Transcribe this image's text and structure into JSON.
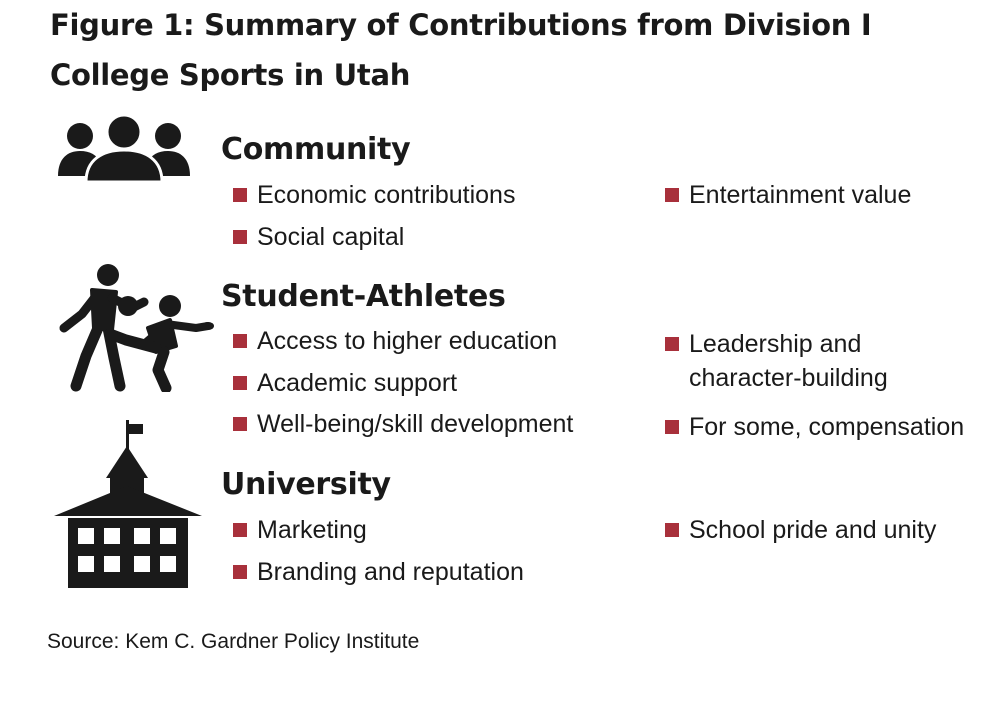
{
  "title": "Figure 1: Summary of Contributions from Division I College Sports in Utah",
  "accent_color": "#a8303b",
  "sections": [
    {
      "heading": "Community",
      "icon": "people-group-icon",
      "left_items": [
        "Economic contributions",
        "Social capital"
      ],
      "right_items": [
        "Entertainment value"
      ]
    },
    {
      "heading": "Student-Athletes",
      "icon": "athletes-icon",
      "left_items": [
        "Access to higher education",
        "Academic support",
        "Well-being/skill development"
      ],
      "right_items": [
        "Leadership and character-building",
        "For some, compensation"
      ]
    },
    {
      "heading": "University",
      "icon": "schoolhouse-icon",
      "left_items": [
        "Marketing",
        "Branding and reputation"
      ],
      "right_items": [
        "School pride and unity"
      ]
    }
  ],
  "source": "Source: Kem C. Gardner Policy Institute"
}
